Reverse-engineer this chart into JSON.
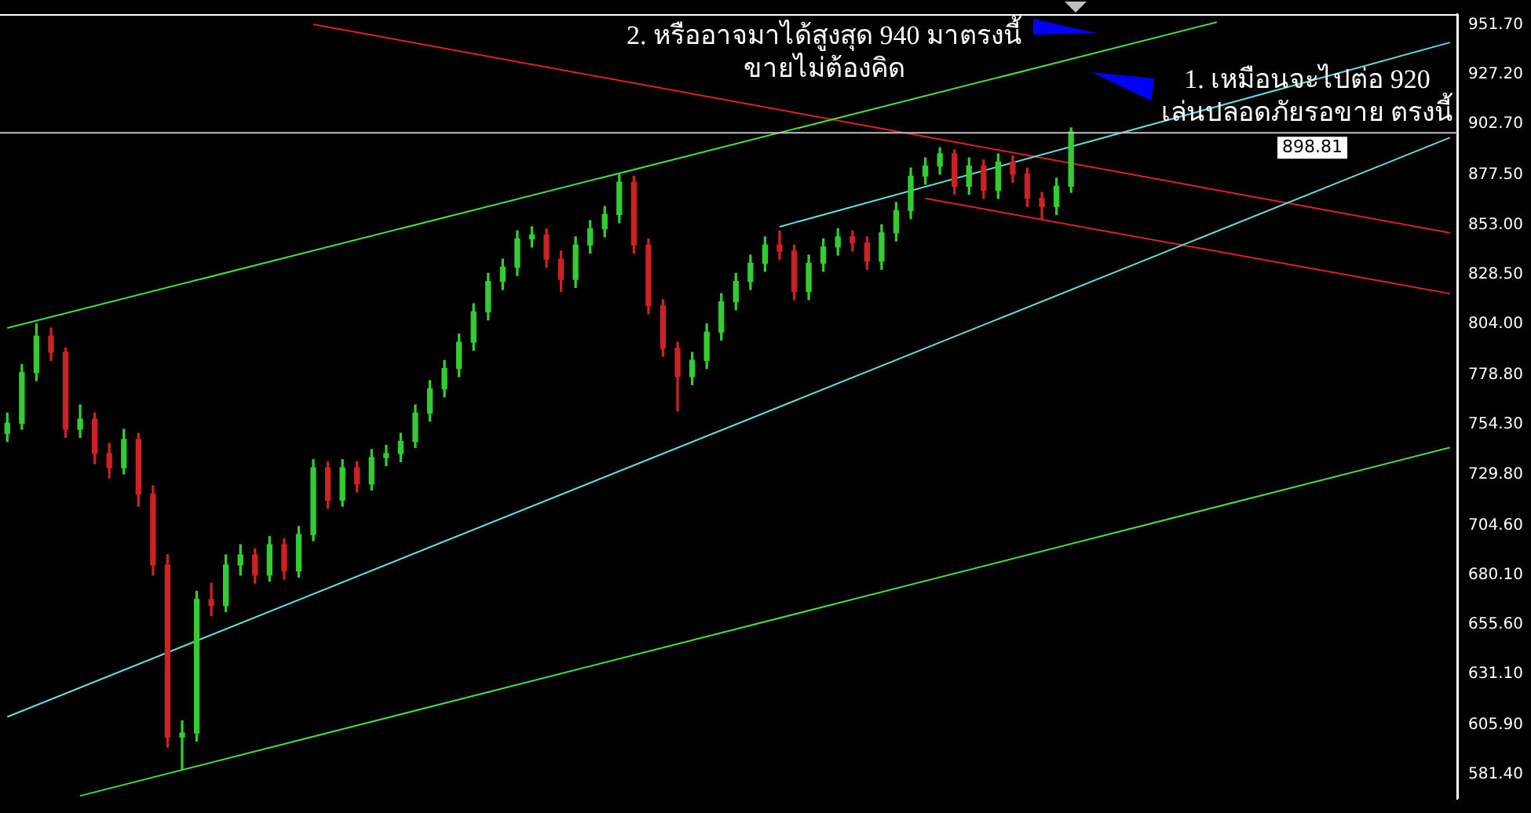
{
  "chart_data": {
    "type": "candlestick",
    "tick_labels": "y",
    "grid": false,
    "categories": [
      null,
      null,
      null,
      null,
      null,
      null,
      null,
      null,
      null,
      null,
      null,
      null,
      null,
      null,
      null,
      null,
      null,
      null,
      null,
      null,
      null,
      null,
      null,
      null,
      null,
      null,
      null,
      null,
      null,
      null,
      null,
      null,
      null,
      null,
      null,
      null,
      null,
      null,
      null,
      null,
      null,
      null,
      null,
      null,
      null,
      null,
      null,
      null,
      null,
      null,
      null,
      null,
      null,
      null,
      null,
      null,
      null,
      null,
      null,
      null,
      null,
      null,
      null,
      null,
      null,
      null,
      null,
      null,
      null,
      null,
      null,
      null,
      null,
      null,
      null,
      null,
      null,
      null,
      null,
      null,
      null,
      null,
      null,
      null,
      null,
      null,
      null,
      null,
      null,
      null,
      null,
      null,
      null,
      null,
      null,
      null,
      null,
      null,
      null,
      null
    ],
    "ohlc": [
      [
        750,
        760,
        746,
        755
      ],
      [
        755,
        784,
        752,
        780
      ],
      [
        780,
        804,
        776,
        798
      ],
      [
        798,
        802,
        786,
        790
      ],
      [
        790,
        792,
        748,
        752
      ],
      [
        752,
        764,
        748,
        757
      ],
      [
        757,
        760,
        735,
        740
      ],
      [
        740,
        745,
        728,
        733
      ],
      [
        733,
        752,
        730,
        747
      ],
      [
        747,
        750,
        714,
        720
      ],
      [
        720,
        724,
        680,
        685
      ],
      [
        685,
        690,
        595,
        600
      ],
      [
        600,
        608,
        584,
        602
      ],
      [
        602,
        672,
        598,
        668
      ],
      [
        668,
        676,
        660,
        665
      ],
      [
        665,
        690,
        662,
        685
      ],
      [
        685,
        695,
        680,
        690
      ],
      [
        690,
        693,
        676,
        680
      ],
      [
        680,
        699,
        677,
        695
      ],
      [
        695,
        698,
        678,
        682
      ],
      [
        682,
        704,
        679,
        700
      ],
      [
        700,
        737,
        697,
        733
      ],
      [
        733,
        736,
        713,
        717
      ],
      [
        717,
        737,
        714,
        733
      ],
      [
        733,
        736,
        721,
        725
      ],
      [
        725,
        742,
        722,
        738
      ],
      [
        738,
        744,
        734,
        740
      ],
      [
        740,
        750,
        736,
        746
      ],
      [
        746,
        764,
        743,
        760
      ],
      [
        760,
        776,
        756,
        772
      ],
      [
        772,
        786,
        768,
        782
      ],
      [
        782,
        799,
        778,
        795
      ],
      [
        795,
        814,
        791,
        810
      ],
      [
        810,
        829,
        806,
        825
      ],
      [
        825,
        836,
        821,
        832
      ],
      [
        832,
        850,
        828,
        846
      ],
      [
        846,
        852,
        842,
        848
      ],
      [
        848,
        851,
        832,
        836
      ],
      [
        836,
        840,
        820,
        826
      ],
      [
        826,
        847,
        822,
        843
      ],
      [
        843,
        855,
        839,
        851
      ],
      [
        851,
        862,
        847,
        858
      ],
      [
        858,
        878,
        854,
        874
      ],
      [
        874,
        877,
        839,
        843
      ],
      [
        843,
        846,
        809,
        813
      ],
      [
        813,
        816,
        788,
        792
      ],
      [
        792,
        795,
        761,
        778
      ],
      [
        778,
        790,
        774,
        786
      ],
      [
        786,
        804,
        782,
        800
      ],
      [
        800,
        819,
        796,
        815
      ],
      [
        815,
        829,
        811,
        825
      ],
      [
        825,
        838,
        821,
        834
      ],
      [
        834,
        847,
        830,
        843
      ],
      [
        843,
        850,
        836,
        840
      ],
      [
        840,
        843,
        816,
        820
      ],
      [
        820,
        838,
        816,
        834
      ],
      [
        834,
        846,
        830,
        842
      ],
      [
        842,
        851,
        838,
        847
      ],
      [
        847,
        850,
        840,
        844
      ],
      [
        844,
        847,
        831,
        835
      ],
      [
        835,
        853,
        831,
        849
      ],
      [
        849,
        864,
        845,
        860
      ],
      [
        860,
        881,
        856,
        877
      ],
      [
        877,
        886,
        873,
        882
      ],
      [
        882,
        891,
        878,
        888
      ],
      [
        888,
        890,
        868,
        872
      ],
      [
        872,
        886,
        868,
        882
      ],
      [
        882,
        885,
        866,
        870
      ],
      [
        870,
        888,
        866,
        884
      ],
      [
        884,
        887,
        874,
        878
      ],
      [
        878,
        881,
        862,
        866
      ],
      [
        866,
        869,
        856,
        862
      ],
      [
        862,
        876,
        858,
        872
      ],
      [
        872,
        900.8,
        869,
        898.81
      ],
      null,
      null,
      null,
      null,
      null,
      null,
      null,
      null,
      null,
      null,
      null,
      null,
      null,
      null,
      null,
      null,
      null,
      null,
      null,
      null,
      null,
      null,
      null,
      null,
      null,
      null
    ],
    "colors": [
      "#33cc33",
      "#33cc33",
      "#33cc33",
      "#cc2222",
      "#cc2222",
      "#33cc33",
      "#cc2222",
      "#cc2222",
      "#33cc33",
      "#cc2222",
      "#cc2222",
      "#cc2222",
      "#33cc33",
      "#33cc33",
      "#cc2222",
      "#33cc33",
      "#33cc33",
      "#cc2222",
      "#33cc33",
      "#cc2222",
      "#33cc33",
      "#33cc33",
      "#cc2222",
      "#33cc33",
      "#cc2222",
      "#33cc33",
      "#33cc33",
      "#33cc33",
      "#33cc33",
      "#33cc33",
      "#33cc33",
      "#33cc33",
      "#33cc33",
      "#33cc33",
      "#33cc33",
      "#33cc33",
      "#33cc33",
      "#cc2222",
      "#cc2222",
      "#33cc33",
      "#33cc33",
      "#33cc33",
      "#33cc33",
      "#cc2222",
      "#cc2222",
      "#cc2222",
      "#cc2222",
      "#33cc33",
      "#33cc33",
      "#33cc33",
      "#33cc33",
      "#33cc33",
      "#33cc33",
      "#cc2222",
      "#cc2222",
      "#33cc33",
      "#33cc33",
      "#33cc33",
      "#cc2222",
      "#cc2222",
      "#33cc33",
      "#33cc33",
      "#33cc33",
      "#33cc33",
      "#33cc33",
      "#cc2222",
      "#33cc33",
      "#cc2222",
      "#33cc33",
      "#cc2222",
      "#cc2222",
      "#cc2222",
      "#33cc33",
      "#33cc33",
      null,
      null,
      null,
      null,
      null,
      null,
      null,
      null,
      null,
      null,
      null,
      null,
      null,
      null,
      null,
      null,
      null,
      null,
      null,
      null,
      null,
      null,
      null,
      null,
      null,
      null
    ],
    "series": [
      {
        "type": "line",
        "color": "#44dd44",
        "values": [
          802,
          null,
          null,
          null,
          null,
          null,
          null,
          null,
          null,
          null,
          null,
          null,
          null,
          null,
          null,
          null,
          null,
          null,
          null,
          null,
          null,
          null,
          null,
          null,
          null,
          null,
          null,
          null,
          null,
          null,
          null,
          null,
          null,
          null,
          null,
          null,
          null,
          null,
          null,
          null,
          null,
          null,
          null,
          null,
          null,
          null,
          null,
          null,
          null,
          null,
          null,
          null,
          null,
          null,
          null,
          null,
          null,
          null,
          null,
          null,
          null,
          null,
          null,
          null,
          null,
          null,
          null,
          null,
          null,
          null,
          null,
          null,
          null,
          null,
          null,
          null,
          null,
          null,
          null,
          null,
          null,
          null,
          null,
          953,
          null,
          null,
          null,
          null,
          null,
          null,
          null,
          null,
          null,
          null,
          null,
          null,
          null,
          null,
          null,
          null
        ]
      },
      {
        "type": "line",
        "color": "#44dd44",
        "values": [
          null,
          null,
          null,
          null,
          null,
          571,
          null,
          null,
          null,
          null,
          null,
          null,
          null,
          null,
          null,
          null,
          null,
          null,
          null,
          null,
          null,
          null,
          null,
          null,
          null,
          null,
          null,
          null,
          null,
          null,
          null,
          null,
          null,
          null,
          null,
          null,
          null,
          null,
          null,
          null,
          null,
          null,
          null,
          null,
          null,
          null,
          null,
          null,
          null,
          null,
          null,
          null,
          null,
          null,
          null,
          null,
          null,
          null,
          null,
          null,
          null,
          null,
          null,
          null,
          null,
          null,
          null,
          null,
          null,
          null,
          null,
          null,
          null,
          null,
          null,
          null,
          null,
          null,
          null,
          null,
          null,
          null,
          null,
          null,
          null,
          null,
          null,
          null,
          null,
          null,
          null,
          null,
          null,
          null,
          null,
          null,
          null,
          null,
          null,
          743
        ]
      },
      {
        "type": "line",
        "color": "#66dddd",
        "values": [
          610,
          null,
          null,
          null,
          null,
          null,
          null,
          null,
          null,
          null,
          null,
          null,
          null,
          null,
          null,
          null,
          null,
          null,
          null,
          null,
          null,
          null,
          null,
          null,
          null,
          null,
          null,
          null,
          null,
          null,
          null,
          null,
          null,
          null,
          null,
          null,
          null,
          null,
          null,
          null,
          null,
          null,
          null,
          null,
          null,
          null,
          null,
          null,
          null,
          null,
          null,
          null,
          null,
          null,
          null,
          null,
          null,
          null,
          null,
          null,
          null,
          null,
          null,
          null,
          null,
          null,
          null,
          null,
          null,
          null,
          null,
          null,
          null,
          null,
          null,
          null,
          null,
          null,
          null,
          null,
          null,
          null,
          null,
          null,
          null,
          null,
          null,
          null,
          null,
          null,
          null,
          null,
          null,
          null,
          null,
          null,
          null,
          null,
          null,
          896
        ]
      },
      {
        "type": "line",
        "color": "#66dddd",
        "values": [
          null,
          null,
          null,
          null,
          null,
          null,
          null,
          null,
          null,
          null,
          null,
          null,
          null,
          null,
          null,
          null,
          null,
          null,
          null,
          null,
          null,
          null,
          null,
          null,
          null,
          null,
          null,
          null,
          null,
          null,
          null,
          null,
          null,
          null,
          null,
          null,
          null,
          null,
          null,
          null,
          null,
          null,
          null,
          null,
          null,
          null,
          null,
          null,
          null,
          null,
          null,
          null,
          null,
          852,
          null,
          null,
          null,
          null,
          null,
          null,
          null,
          null,
          null,
          null,
          null,
          null,
          null,
          null,
          null,
          null,
          null,
          null,
          null,
          null,
          null,
          null,
          null,
          null,
          null,
          null,
          null,
          null,
          null,
          null,
          null,
          null,
          null,
          null,
          null,
          null,
          null,
          null,
          null,
          null,
          null,
          null,
          null,
          null,
          null,
          943
        ]
      },
      {
        "type": "line",
        "color": "#dd2222",
        "values": [
          null,
          null,
          null,
          null,
          null,
          null,
          null,
          null,
          null,
          null,
          null,
          null,
          null,
          null,
          null,
          null,
          null,
          null,
          null,
          null,
          null,
          952,
          null,
          null,
          null,
          null,
          null,
          null,
          null,
          null,
          null,
          null,
          null,
          null,
          null,
          null,
          null,
          null,
          null,
          null,
          null,
          null,
          null,
          null,
          null,
          null,
          null,
          null,
          null,
          null,
          null,
          null,
          null,
          null,
          null,
          null,
          null,
          null,
          null,
          null,
          null,
          null,
          null,
          null,
          null,
          null,
          null,
          null,
          null,
          null,
          null,
          null,
          null,
          null,
          null,
          null,
          null,
          null,
          null,
          null,
          null,
          null,
          null,
          null,
          null,
          null,
          null,
          null,
          null,
          null,
          null,
          null,
          null,
          null,
          null,
          null,
          null,
          null,
          null,
          849
        ]
      },
      {
        "type": "line",
        "color": "#dd2222",
        "values": [
          null,
          null,
          null,
          null,
          null,
          null,
          null,
          null,
          null,
          null,
          null,
          null,
          null,
          null,
          null,
          null,
          null,
          null,
          null,
          null,
          null,
          null,
          null,
          null,
          null,
          null,
          null,
          null,
          null,
          null,
          null,
          null,
          null,
          null,
          null,
          null,
          null,
          null,
          null,
          null,
          null,
          null,
          null,
          null,
          null,
          null,
          null,
          null,
          null,
          null,
          null,
          null,
          null,
          null,
          null,
          null,
          null,
          null,
          null,
          null,
          null,
          null,
          null,
          866,
          null,
          null,
          null,
          null,
          null,
          null,
          null,
          null,
          null,
          null,
          null,
          null,
          null,
          null,
          null,
          null,
          null,
          null,
          null,
          null,
          null,
          null,
          null,
          null,
          null,
          null,
          null,
          null,
          null,
          null,
          null,
          null,
          null,
          null,
          null,
          819
        ]
      }
    ],
    "ref_lines": [
      {
        "axis": "y",
        "value": 898.81,
        "label": "898.81",
        "color": "#c0c0c0"
      }
    ],
    "ylim": [
      569.5,
      957
    ],
    "yticks": [
      {
        "value": 951.7,
        "label": "951.70"
      },
      {
        "value": 927.2,
        "label": "927.20"
      },
      {
        "value": 902.7,
        "label": "902.70"
      },
      {
        "value": 877.5,
        "label": "877.50"
      },
      {
        "value": 853,
        "label": "853.00"
      },
      {
        "value": 828.5,
        "label": "828.50"
      },
      {
        "value": 804,
        "label": "804.00"
      },
      {
        "value": 778.8,
        "label": "778.80"
      },
      {
        "value": 754.3,
        "label": "754.30"
      },
      {
        "value": 729.8,
        "label": "729.80"
      },
      {
        "value": 704.6,
        "label": "704.60"
      },
      {
        "value": 680.1,
        "label": "680.10"
      },
      {
        "value": 655.6,
        "label": "655.60"
      },
      {
        "value": 631.1,
        "label": "631.10"
      },
      {
        "value": 605.9,
        "label": "605.90"
      },
      {
        "value": 581.4,
        "label": "581.40"
      }
    ],
    "annotations": [
      "2. หรืออาจมาได้สูงสุด 940 มาตรงนี้\nขายไม่ต้องคิด",
      "1. เหมือนจะไปต่อ 920\nเล่นปลอดภัยรอขาย ตรงนี้"
    ]
  }
}
